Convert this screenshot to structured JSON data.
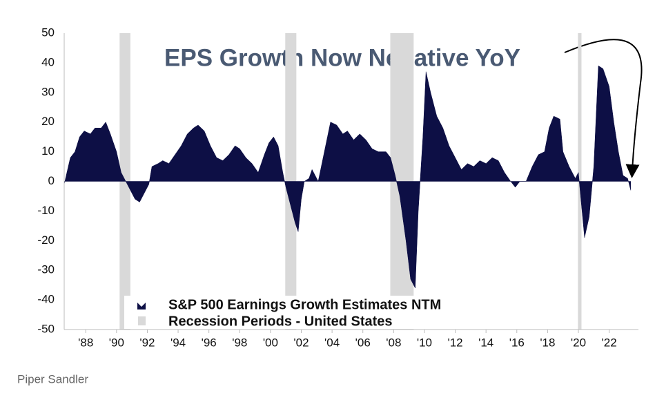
{
  "chart_data": {
    "type": "area",
    "annotation": "EPS Growth Now Negative YoY",
    "source": "Piper Sandler",
    "x": [
      1986.6,
      1987.0,
      1987.3,
      1987.6,
      1987.9,
      1988.3,
      1988.6,
      1989.0,
      1989.3,
      1989.6,
      1990.0,
      1990.3,
      1990.6,
      1990.9,
      1991.2,
      1991.5,
      1991.8,
      1992.1,
      1992.3,
      1992.7,
      1993.0,
      1993.4,
      1993.8,
      1994.2,
      1994.6,
      1995.0,
      1995.3,
      1995.7,
      1996.1,
      1996.5,
      1996.9,
      1997.3,
      1997.7,
      1998.0,
      1998.4,
      1998.8,
      1999.2,
      1999.6,
      1999.9,
      2000.2,
      2000.5,
      2000.8,
      2001.0,
      2001.3,
      2001.6,
      2001.8,
      2002.0,
      2002.2,
      2002.5,
      2002.7,
      2003.1,
      2003.5,
      2003.9,
      2004.3,
      2004.7,
      2005.0,
      2005.4,
      2005.8,
      2006.2,
      2006.6,
      2007.0,
      2007.5,
      2007.8,
      2008.1,
      2008.4,
      2008.8,
      2009.1,
      2009.4,
      2009.6,
      2009.9,
      2010.1,
      2010.4,
      2010.8,
      2011.2,
      2011.6,
      2012.0,
      2012.4,
      2012.8,
      2013.2,
      2013.6,
      2014.0,
      2014.4,
      2014.8,
      2015.2,
      2015.6,
      2015.9,
      2016.2,
      2016.6,
      2017.0,
      2017.4,
      2017.8,
      2018.1,
      2018.4,
      2018.8,
      2019.0,
      2019.4,
      2019.8,
      2020.0,
      2020.2,
      2020.4,
      2020.7,
      2021.0,
      2021.3,
      2021.6,
      2022.0,
      2022.3,
      2022.6,
      2022.9,
      2023.2,
      2023.4
    ],
    "series": [
      {
        "name": "S&P 500 Earnings Growth Estimates NTM",
        "color": "#0d0f45",
        "values": [
          -1,
          8,
          10,
          15,
          17,
          16,
          18,
          18,
          20,
          16,
          10,
          3,
          0,
          -3,
          -6,
          -7,
          -4,
          -1,
          5,
          6,
          7,
          6,
          9,
          12,
          16,
          18,
          19,
          17,
          12,
          8,
          7,
          9,
          12,
          11,
          8,
          6,
          3,
          9,
          13,
          15,
          12,
          3,
          -2,
          -8,
          -14,
          -17,
          -6,
          0,
          1,
          4,
          0,
          10,
          20,
          19,
          16,
          17,
          14,
          16,
          14,
          11,
          10,
          10,
          8,
          2,
          -5,
          -20,
          -33,
          -36,
          -10,
          15,
          37,
          30,
          22,
          18,
          12,
          8,
          4,
          6,
          5,
          7,
          6,
          8,
          7,
          3,
          0,
          -2,
          0,
          0,
          5,
          9,
          10,
          18,
          22,
          21,
          10,
          5,
          1,
          3,
          -8,
          -19,
          -12,
          5,
          39,
          38,
          32,
          20,
          10,
          2,
          1,
          -3
        ]
      }
    ],
    "recessions": {
      "name": "Recession Periods - United States",
      "color": "#d9d9d9",
      "periods": [
        [
          1990.2,
          1990.9
        ],
        [
          2000.96,
          2001.68
        ],
        [
          2007.78,
          2009.3
        ],
        [
          2019.97,
          2020.2
        ]
      ]
    },
    "xlim": [
      1986.6,
      2023.9
    ],
    "xticks": [
      {
        "value": 1988,
        "label": "'88"
      },
      {
        "value": 1990,
        "label": "'90"
      },
      {
        "value": 1992,
        "label": "'92"
      },
      {
        "value": 1994,
        "label": "'94"
      },
      {
        "value": 1996,
        "label": "'96"
      },
      {
        "value": 1998,
        "label": "'98"
      },
      {
        "value": 2000,
        "label": "'00"
      },
      {
        "value": 2002,
        "label": "'02"
      },
      {
        "value": 2004,
        "label": "'04"
      },
      {
        "value": 2006,
        "label": "'06"
      },
      {
        "value": 2008,
        "label": "'08"
      },
      {
        "value": 2010,
        "label": "'10"
      },
      {
        "value": 2012,
        "label": "'12"
      },
      {
        "value": 2014,
        "label": "'14"
      },
      {
        "value": 2016,
        "label": "'16"
      },
      {
        "value": 2018,
        "label": "'18"
      },
      {
        "value": 2020,
        "label": "'20"
      },
      {
        "value": 2022,
        "label": "'22"
      }
    ],
    "ylim": [
      -50,
      50
    ],
    "yticks": [
      -50,
      -40,
      -30,
      -20,
      -10,
      0,
      10,
      20,
      30,
      40,
      50
    ],
    "grid": false
  }
}
